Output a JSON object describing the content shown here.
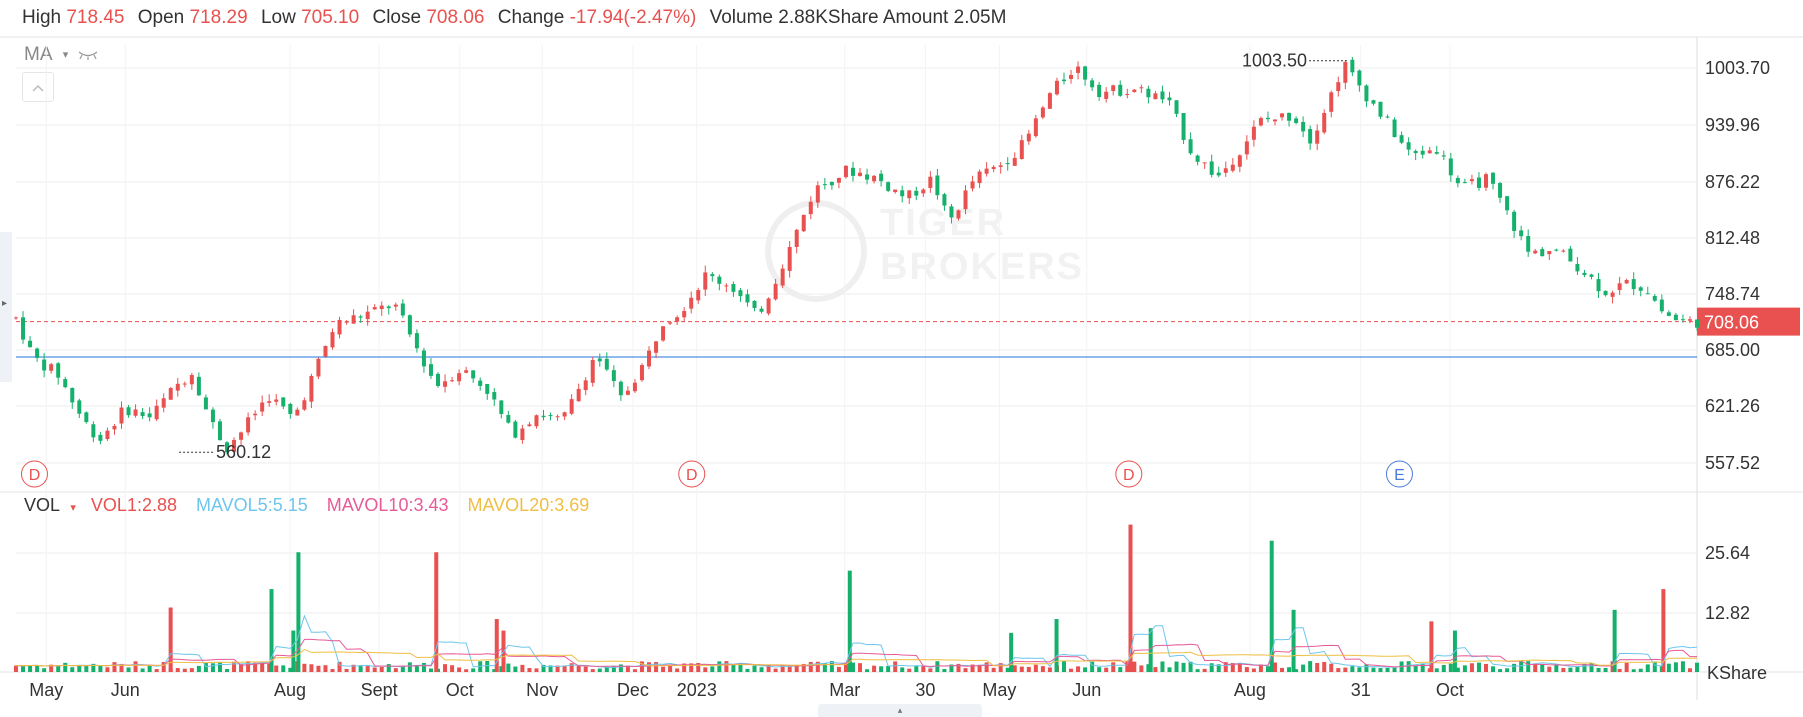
{
  "info": {
    "high_label": "High",
    "high": "718.45",
    "open_label": "Open",
    "open": "718.29",
    "low_label": "Low",
    "low": "705.10",
    "close_label": "Close",
    "close": "708.06",
    "change_label": "Change",
    "change": "-17.94(-2.47%)",
    "volume_label": "Volume",
    "volume": "2.88K",
    "amount_label": "Share Amount",
    "amount": "2.05M"
  },
  "ma": {
    "label": "MA",
    "caret": "▾",
    "eye_icon": "eye-closed-icon"
  },
  "collapse_icon": "chevron-up-icon",
  "vol": {
    "label": "VOL",
    "caret": "▾",
    "vol1": "VOL1:2.88",
    "mavol5": "MAVOL5:5.15",
    "mavol10": "MAVOL10:3.43",
    "mavol20": "MAVOL20:3.69",
    "unit": "KShare"
  },
  "left_handle_icon": "▸",
  "bottom_handle_icon": "▴",
  "watermark": {
    "line1": "TIGER",
    "line2": "BROKERS"
  },
  "colors": {
    "up": "#e8514f",
    "down": "#15b06b",
    "grid": "#eeeeee",
    "mavol5": "#6ec6ee",
    "mavol10": "#e85a96",
    "mavol20": "#efbf44",
    "support_line": "#4a90e2",
    "price_badge": "#e8514f",
    "event_e": "#4a7bd8"
  },
  "chart_data": {
    "type": "candlestick",
    "y_axis": {
      "range": [
        540,
        1010
      ],
      "ticks": [
        "1003.70",
        "939.96",
        "876.22",
        "812.48",
        "748.74",
        "685.00",
        "621.26",
        "557.52"
      ]
    },
    "vol_axis": {
      "range": [
        0,
        33
      ],
      "ticks": [
        "25.64",
        "12.82"
      ],
      "unit": "KShare"
    },
    "x_labels": [
      "May",
      "Jun",
      "Aug",
      "Sept",
      "Oct",
      "Nov",
      "Dec",
      "2023",
      "Mar",
      "30",
      "May",
      "Jun",
      "Aug",
      "31",
      "Oct"
    ],
    "price_path": [
      {
        "t": 0.0,
        "p": 712
      },
      {
        "t": 0.01,
        "p": 668
      },
      {
        "t": 0.025,
        "p": 648
      },
      {
        "t": 0.04,
        "p": 596
      },
      {
        "t": 0.05,
        "p": 575
      },
      {
        "t": 0.065,
        "p": 610
      },
      {
        "t": 0.08,
        "p": 600
      },
      {
        "t": 0.095,
        "p": 635
      },
      {
        "t": 0.105,
        "p": 652
      },
      {
        "t": 0.115,
        "p": 598
      },
      {
        "t": 0.125,
        "p": 565
      },
      {
        "t": 0.135,
        "p": 586
      },
      {
        "t": 0.15,
        "p": 625
      },
      {
        "t": 0.165,
        "p": 598
      },
      {
        "t": 0.175,
        "p": 640
      },
      {
        "t": 0.19,
        "p": 705
      },
      {
        "t": 0.21,
        "p": 718
      },
      {
        "t": 0.225,
        "p": 728
      },
      {
        "t": 0.235,
        "p": 690
      },
      {
        "t": 0.25,
        "p": 636
      },
      {
        "t": 0.265,
        "p": 655
      },
      {
        "t": 0.28,
        "p": 632
      },
      {
        "t": 0.295,
        "p": 580
      },
      {
        "t": 0.31,
        "p": 605
      },
      {
        "t": 0.325,
        "p": 595
      },
      {
        "t": 0.345,
        "p": 672
      },
      {
        "t": 0.36,
        "p": 620
      },
      {
        "t": 0.375,
        "p": 665
      },
      {
        "t": 0.385,
        "p": 710
      },
      {
        "t": 0.395,
        "p": 720
      },
      {
        "t": 0.41,
        "p": 760
      },
      {
        "t": 0.425,
        "p": 750
      },
      {
        "t": 0.44,
        "p": 715
      },
      {
        "t": 0.445,
        "p": 728
      },
      {
        "t": 0.46,
        "p": 790
      },
      {
        "t": 0.475,
        "p": 858
      },
      {
        "t": 0.495,
        "p": 880
      },
      {
        "t": 0.51,
        "p": 872
      },
      {
        "t": 0.53,
        "p": 848
      },
      {
        "t": 0.545,
        "p": 870
      },
      {
        "t": 0.555,
        "p": 820
      },
      {
        "t": 0.57,
        "p": 870
      },
      {
        "t": 0.585,
        "p": 885
      },
      {
        "t": 0.6,
        "p": 910
      },
      {
        "t": 0.615,
        "p": 965
      },
      {
        "t": 0.63,
        "p": 998
      },
      {
        "t": 0.645,
        "p": 968
      },
      {
        "t": 0.665,
        "p": 972
      },
      {
        "t": 0.685,
        "p": 958
      },
      {
        "t": 0.7,
        "p": 898
      },
      {
        "t": 0.715,
        "p": 872
      },
      {
        "t": 0.725,
        "p": 895
      },
      {
        "t": 0.74,
        "p": 935
      },
      {
        "t": 0.76,
        "p": 942
      },
      {
        "t": 0.77,
        "p": 915
      },
      {
        "t": 0.78,
        "p": 955
      },
      {
        "t": 0.79,
        "p": 1000
      },
      {
        "t": 0.805,
        "p": 960
      },
      {
        "t": 0.815,
        "p": 935
      },
      {
        "t": 0.83,
        "p": 895
      },
      {
        "t": 0.845,
        "p": 905
      },
      {
        "t": 0.86,
        "p": 858
      },
      {
        "t": 0.875,
        "p": 870
      },
      {
        "t": 0.885,
        "p": 838
      },
      {
        "t": 0.9,
        "p": 785
      },
      {
        "t": 0.915,
        "p": 790
      },
      {
        "t": 0.93,
        "p": 770
      },
      {
        "t": 0.945,
        "p": 742
      },
      {
        "t": 0.96,
        "p": 752
      },
      {
        "t": 0.97,
        "p": 745
      },
      {
        "t": 0.98,
        "p": 718
      },
      {
        "t": 0.99,
        "p": 708
      }
    ],
    "high_marker": {
      "t": 0.793,
      "label": "1003.50"
    },
    "low_marker": {
      "t": 0.097,
      "label": "560.12"
    },
    "current_price": {
      "value": 708.06,
      "label": "708.06"
    },
    "support_level": 668,
    "events": [
      {
        "t": 0.011,
        "label": "D"
      },
      {
        "t": 0.402,
        "label": "D"
      },
      {
        "t": 0.662,
        "label": "D"
      },
      {
        "t": 0.823,
        "label": "E"
      }
    ],
    "volume_spikes": [
      {
        "t": 0.092,
        "v": 14.0,
        "up": true
      },
      {
        "t": 0.152,
        "v": 18.0,
        "up": false
      },
      {
        "t": 0.168,
        "v": 26.0,
        "up": false
      },
      {
        "t": 0.165,
        "v": 9.0,
        "up": false
      },
      {
        "t": 0.25,
        "v": 26.0,
        "up": true
      },
      {
        "t": 0.286,
        "v": 11.5,
        "up": true
      },
      {
        "t": 0.29,
        "v": 9.0,
        "up": true
      },
      {
        "t": 0.496,
        "v": 22.0,
        "up": false
      },
      {
        "t": 0.592,
        "v": 8.5,
        "up": false
      },
      {
        "t": 0.619,
        "v": 11.5,
        "up": false
      },
      {
        "t": 0.663,
        "v": 32.0,
        "up": true
      },
      {
        "t": 0.675,
        "v": 9.5,
        "up": false
      },
      {
        "t": 0.747,
        "v": 28.5,
        "up": false
      },
      {
        "t": 0.76,
        "v": 13.5,
        "up": false
      },
      {
        "t": 0.842,
        "v": 11.0,
        "up": true
      },
      {
        "t": 0.856,
        "v": 9.0,
        "up": false
      },
      {
        "t": 0.951,
        "v": 13.5,
        "up": false
      },
      {
        "t": 0.98,
        "v": 18.0,
        "up": true
      }
    ]
  }
}
